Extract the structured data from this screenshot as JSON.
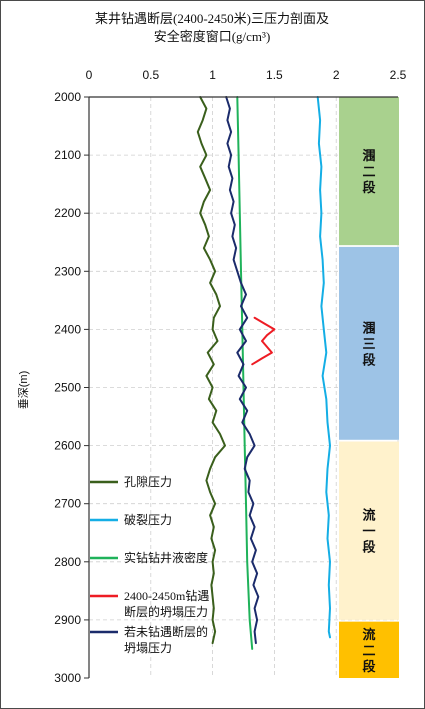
{
  "chart_data": {
    "type": "line",
    "title_lines": [
      "某井钻遇断层(2400-2450米)三压力剖面及",
      "安全密度窗口(g/cm³)"
    ],
    "ylabel": "垂深(m)",
    "xlim": [
      0,
      2.5
    ],
    "ylim": [
      2000,
      3000
    ],
    "x_ticks": [
      "0",
      "0.5",
      "1",
      "1.5",
      "2",
      "2.5"
    ],
    "y_ticks": [
      "2000",
      "2100",
      "2200",
      "2300",
      "2400",
      "2500",
      "2600",
      "2700",
      "2800",
      "2900",
      "3000"
    ],
    "y_inverted": true,
    "grid": true,
    "legend_position": "bottom-left",
    "colors": {
      "pore": "#3a5f1c",
      "frac": "#14aee5",
      "mud": "#1fb25a",
      "faultcollapse": "#ee1c24",
      "collapse": "#1b2b6b",
      "zone_green": "#a9d18e",
      "zone_blue": "#9dc3e6",
      "zone_cream": "#fff2cc",
      "zone_gold": "#ffc000"
    },
    "series": [
      {
        "key": "pore",
        "name": "孔隙压力",
        "points": [
          [
            0.9,
            2000
          ],
          [
            0.95,
            2020
          ],
          [
            0.92,
            2040
          ],
          [
            0.88,
            2060
          ],
          [
            0.91,
            2080
          ],
          [
            0.95,
            2100
          ],
          [
            0.9,
            2120
          ],
          [
            0.94,
            2140
          ],
          [
            0.98,
            2160
          ],
          [
            0.93,
            2180
          ],
          [
            0.9,
            2200
          ],
          [
            0.94,
            2220
          ],
          [
            0.97,
            2240
          ],
          [
            0.93,
            2260
          ],
          [
            0.98,
            2280
          ],
          [
            1.02,
            2300
          ],
          [
            0.98,
            2320
          ],
          [
            1.03,
            2340
          ],
          [
            1.06,
            2360
          ],
          [
            1.01,
            2380
          ],
          [
            1.0,
            2400
          ],
          [
            1.04,
            2420
          ],
          [
            0.96,
            2440
          ],
          [
            1.01,
            2460
          ],
          [
            0.95,
            2480
          ],
          [
            1.0,
            2500
          ],
          [
            0.97,
            2520
          ],
          [
            1.03,
            2540
          ],
          [
            1.0,
            2560
          ],
          [
            1.06,
            2580
          ],
          [
            1.1,
            2600
          ],
          [
            1.02,
            2620
          ],
          [
            0.98,
            2640
          ],
          [
            0.95,
            2660
          ],
          [
            0.98,
            2680
          ],
          [
            1.02,
            2700
          ],
          [
            0.98,
            2720
          ],
          [
            1.01,
            2740
          ],
          [
            0.99,
            2760
          ],
          [
            1.02,
            2780
          ],
          [
            1.0,
            2800
          ],
          [
            1.01,
            2820
          ],
          [
            0.99,
            2840
          ],
          [
            1.0,
            2860
          ],
          [
            1.01,
            2880
          ],
          [
            1.0,
            2900
          ],
          [
            1.02,
            2920
          ],
          [
            1.0,
            2940
          ]
        ]
      },
      {
        "key": "frac",
        "name": "破裂压力",
        "points": [
          [
            1.85,
            2000
          ],
          [
            1.87,
            2040
          ],
          [
            1.86,
            2080
          ],
          [
            1.88,
            2120
          ],
          [
            1.87,
            2160
          ],
          [
            1.88,
            2200
          ],
          [
            1.87,
            2240
          ],
          [
            1.89,
            2280
          ],
          [
            1.9,
            2320
          ],
          [
            1.88,
            2360
          ],
          [
            1.9,
            2400
          ],
          [
            1.92,
            2440
          ],
          [
            1.89,
            2480
          ],
          [
            1.92,
            2520
          ],
          [
            1.93,
            2560
          ],
          [
            1.95,
            2600
          ],
          [
            1.93,
            2640
          ],
          [
            1.92,
            2680
          ],
          [
            1.94,
            2720
          ],
          [
            1.93,
            2760
          ],
          [
            1.95,
            2800
          ],
          [
            1.94,
            2840
          ],
          [
            1.95,
            2880
          ],
          [
            1.94,
            2920
          ],
          [
            1.95,
            2930
          ]
        ]
      },
      {
        "key": "mud",
        "name": "实钻钻井液密度",
        "points": [
          [
            1.2,
            2000
          ],
          [
            1.21,
            2100
          ],
          [
            1.22,
            2200
          ],
          [
            1.23,
            2300
          ],
          [
            1.24,
            2400
          ],
          [
            1.25,
            2500
          ],
          [
            1.26,
            2600
          ],
          [
            1.27,
            2700
          ],
          [
            1.28,
            2800
          ],
          [
            1.3,
            2900
          ],
          [
            1.32,
            2950
          ]
        ]
      },
      {
        "key": "faultcollapse",
        "name": "2400-2450m钻遇断层的坍塌压力",
        "points": [
          [
            1.34,
            2380
          ],
          [
            1.42,
            2390
          ],
          [
            1.5,
            2400
          ],
          [
            1.44,
            2410
          ],
          [
            1.4,
            2420
          ],
          [
            1.48,
            2440
          ],
          [
            1.4,
            2450
          ],
          [
            1.36,
            2455
          ],
          [
            1.32,
            2460
          ]
        ]
      },
      {
        "key": "collapse",
        "name": "若未钻遇断层的坍塌压力",
        "points": [
          [
            1.11,
            2000
          ],
          [
            1.14,
            2020
          ],
          [
            1.12,
            2040
          ],
          [
            1.15,
            2060
          ],
          [
            1.12,
            2080
          ],
          [
            1.15,
            2100
          ],
          [
            1.13,
            2120
          ],
          [
            1.16,
            2140
          ],
          [
            1.14,
            2160
          ],
          [
            1.17,
            2180
          ],
          [
            1.15,
            2200
          ],
          [
            1.18,
            2220
          ],
          [
            1.16,
            2240
          ],
          [
            1.19,
            2260
          ],
          [
            1.17,
            2280
          ],
          [
            1.2,
            2300
          ],
          [
            1.23,
            2320
          ],
          [
            1.27,
            2340
          ],
          [
            1.23,
            2360
          ],
          [
            1.28,
            2380
          ],
          [
            1.22,
            2400
          ],
          [
            1.27,
            2420
          ],
          [
            1.2,
            2440
          ],
          [
            1.25,
            2460
          ],
          [
            1.21,
            2480
          ],
          [
            1.27,
            2500
          ],
          [
            1.22,
            2520
          ],
          [
            1.28,
            2540
          ],
          [
            1.24,
            2560
          ],
          [
            1.3,
            2580
          ],
          [
            1.34,
            2600
          ],
          [
            1.28,
            2620
          ],
          [
            1.26,
            2640
          ],
          [
            1.3,
            2660
          ],
          [
            1.29,
            2680
          ],
          [
            1.33,
            2700
          ],
          [
            1.3,
            2720
          ],
          [
            1.34,
            2740
          ],
          [
            1.31,
            2760
          ],
          [
            1.35,
            2780
          ],
          [
            1.32,
            2800
          ],
          [
            1.36,
            2820
          ],
          [
            1.33,
            2840
          ],
          [
            1.37,
            2860
          ],
          [
            1.34,
            2880
          ],
          [
            1.36,
            2900
          ],
          [
            1.34,
            2920
          ],
          [
            1.35,
            2940
          ]
        ]
      }
    ],
    "legend": [
      {
        "key": "pore",
        "label": [
          "孔隙压力"
        ]
      },
      {
        "key": "frac",
        "label": [
          "破裂压力"
        ]
      },
      {
        "key": "mud",
        "label": [
          "实钻钻井液密度"
        ]
      },
      {
        "key": "faultcollapse",
        "label": [
          "2400-2450m钻遇",
          "断层的坍塌压力"
        ]
      },
      {
        "key": "collapse",
        "label": [
          "若未钻遇断层的",
          "坍塌压力"
        ]
      }
    ],
    "zones": [
      {
        "key": "zone_green",
        "from": 2000,
        "to": 2255,
        "label": [
          "涠",
          "二",
          "段"
        ]
      },
      {
        "key": "zone_blue",
        "from": 2258,
        "to": 2590,
        "label": [
          "涠",
          "三",
          "段"
        ]
      },
      {
        "key": "zone_cream",
        "from": 2593,
        "to": 2900,
        "label": [
          "流",
          "一",
          "段"
        ]
      },
      {
        "key": "zone_gold",
        "from": 2903,
        "to": 3000,
        "label": [
          "流",
          "二",
          "段"
        ]
      }
    ]
  }
}
